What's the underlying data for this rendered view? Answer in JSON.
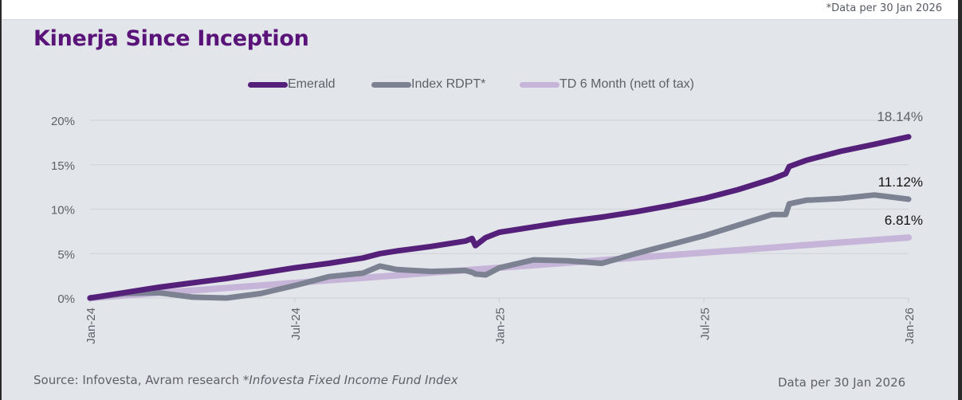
{
  "top_note": "*Data per 30 Jan 2026",
  "title": "Kinerja Since Inception",
  "footer": {
    "source_prefix": "Source: Infovesta, Avram research ",
    "source_italic": "*Infovesta Fixed Income Fund Index",
    "data_per": "Data per 30 Jan 2026"
  },
  "colors": {
    "emerald": "#552079",
    "index": "#7c8291",
    "td": "#c6b5d9",
    "title": "#5a1479",
    "panel_bg": "#e2e5e9",
    "grid": "#d3d5d8"
  },
  "chart_data": {
    "type": "line",
    "title": "Kinerja Since Inception",
    "xlabel": "",
    "ylabel": "",
    "ylim": [
      0,
      20
    ],
    "yticks": [
      0,
      5,
      10,
      15,
      20
    ],
    "ytick_labels": [
      "0%",
      "5%",
      "10%",
      "15%",
      "20%"
    ],
    "xlim": [
      "Jan-24",
      "Jan-26"
    ],
    "xticks": [
      "Jan-24",
      "Jul-24",
      "Jan-25",
      "Jul-25",
      "Jan-26"
    ],
    "x_months": [
      0,
      6,
      12,
      18,
      24
    ],
    "grid": "horizontal",
    "legend_position": "top-center",
    "x": [
      0,
      1,
      2,
      3,
      4,
      5,
      6,
      7,
      8,
      8.5,
      9,
      10,
      11,
      11.2,
      11.3,
      11.6,
      12,
      13,
      14,
      15,
      16,
      17,
      18,
      19,
      20,
      20.4,
      20.5,
      21,
      22,
      23,
      24
    ],
    "series": [
      {
        "name": "Emerald",
        "color_key": "emerald",
        "values": [
          0,
          0.6,
          1.2,
          1.7,
          2.2,
          2.8,
          3.4,
          3.9,
          4.5,
          5.0,
          5.3,
          5.8,
          6.4,
          6.7,
          5.9,
          6.8,
          7.4,
          8.0,
          8.6,
          9.1,
          9.7,
          10.4,
          11.2,
          12.2,
          13.4,
          14.0,
          14.8,
          15.5,
          16.5,
          17.3,
          18.14
        ]
      },
      {
        "name": "Index RDPT*",
        "color_key": "index",
        "values": [
          0,
          0.5,
          0.6,
          0.1,
          0.0,
          0.5,
          1.4,
          2.4,
          2.8,
          3.6,
          3.2,
          3.0,
          3.1,
          2.9,
          2.7,
          2.6,
          3.4,
          4.3,
          4.2,
          3.9,
          5.0,
          6.0,
          7.0,
          8.2,
          9.4,
          9.4,
          10.6,
          11.0,
          11.2,
          11.6,
          11.12
        ]
      },
      {
        "name": "TD 6 Month (nett of tax)",
        "color_key": "td",
        "values": [
          0,
          0.28,
          0.57,
          0.85,
          1.13,
          1.42,
          1.7,
          1.99,
          2.27,
          2.41,
          2.55,
          2.84,
          3.12,
          3.18,
          3.21,
          3.29,
          3.41,
          3.69,
          3.97,
          4.26,
          4.54,
          4.82,
          5.11,
          5.39,
          5.67,
          5.79,
          5.82,
          5.96,
          6.24,
          6.53,
          6.81
        ]
      }
    ],
    "end_labels": [
      {
        "series": "Emerald",
        "text": "18.14%",
        "color": "#5e6168"
      },
      {
        "series": "Index RDPT*",
        "text": "11.12%",
        "color": "#111111"
      },
      {
        "series": "TD 6 Month (nett of tax)",
        "text": "6.81%",
        "color": "#111111"
      }
    ]
  }
}
